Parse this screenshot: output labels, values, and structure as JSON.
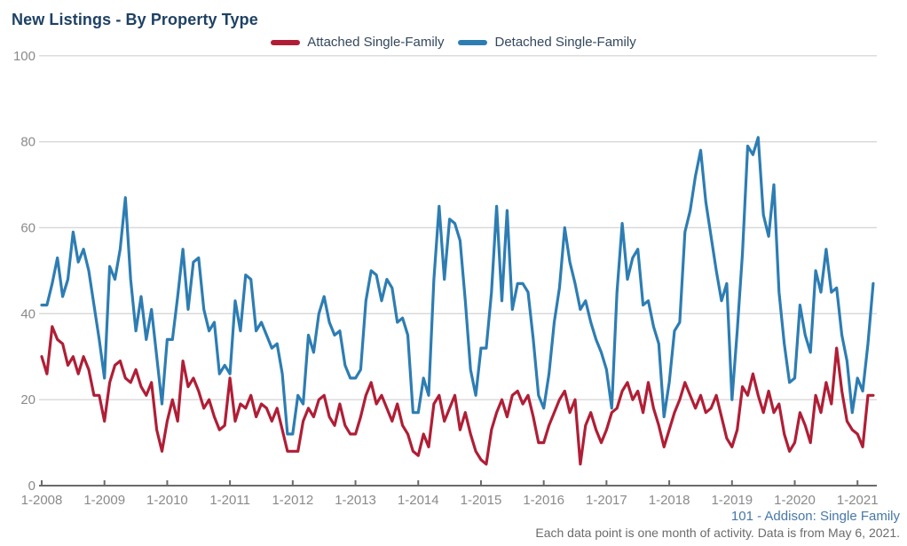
{
  "title": "New Listings - By Property Type",
  "legend": [
    {
      "label": "Attached Single-Family",
      "color": "#b01e36"
    },
    {
      "label": "Detached Single-Family",
      "color": "#2d7db3"
    }
  ],
  "footer": {
    "link": "101 - Addison: Single Family",
    "note": "Each data point is one month of activity. Data is from May 6, 2021."
  },
  "colors": {
    "title": "#1e4164",
    "legend_text": "#33485e",
    "axis_text": "#8a8a8a",
    "axis_line": "#6b6b6b",
    "gridline": "#d8d8d8",
    "attached": "#b01e36",
    "detached": "#2d7db3",
    "footer_link": "#4678a8",
    "footer_note": "#6b6b6b"
  },
  "chart_data": {
    "type": "line",
    "title": "New Listings - By Property Type",
    "xlabel": "",
    "ylabel": "",
    "ylim": [
      0,
      100
    ],
    "y_ticks": [
      0,
      20,
      40,
      60,
      80,
      100
    ],
    "x_tick_labels": [
      "1-2008",
      "1-2009",
      "1-2010",
      "1-2011",
      "1-2012",
      "1-2013",
      "1-2014",
      "1-2015",
      "1-2016",
      "1-2017",
      "1-2018",
      "1-2019",
      "1-2020",
      "1-2021"
    ],
    "months_per_tick": 12,
    "x_start": "2008-01",
    "x_end": "2021-04",
    "grid": "horizontal",
    "legend_position": "top-center",
    "series": [
      {
        "name": "Attached Single-Family",
        "color": "#b01e36",
        "values": [
          30,
          26,
          37,
          34,
          33,
          28,
          30,
          26,
          30,
          27,
          21,
          21,
          15,
          24,
          28,
          29,
          25,
          24,
          27,
          23,
          21,
          24,
          13,
          8,
          15,
          20,
          15,
          29,
          23,
          25,
          22,
          18,
          20,
          16,
          13,
          14,
          25,
          15,
          19,
          18,
          21,
          16,
          19,
          18,
          15,
          18,
          13,
          8,
          8,
          8,
          15,
          18,
          16,
          20,
          21,
          16,
          14,
          19,
          14,
          12,
          12,
          16,
          21,
          24,
          19,
          21,
          18,
          15,
          19,
          14,
          12,
          8,
          7,
          12,
          9,
          19,
          21,
          15,
          18,
          21,
          13,
          17,
          12,
          8,
          6,
          5,
          13,
          17,
          20,
          16,
          21,
          22,
          19,
          21,
          16,
          10,
          10,
          14,
          17,
          20,
          22,
          17,
          20,
          5,
          14,
          17,
          13,
          10,
          13,
          17,
          18,
          22,
          24,
          20,
          22,
          17,
          24,
          18,
          14,
          9,
          13,
          17,
          20,
          24,
          21,
          18,
          21,
          17,
          18,
          21,
          16,
          11,
          9,
          13,
          23,
          21,
          26,
          21,
          17,
          22,
          17,
          19,
          12,
          8,
          10,
          17,
          14,
          10,
          21,
          17,
          24,
          19,
          32,
          22,
          15,
          13,
          12,
          9,
          21,
          21
        ]
      },
      {
        "name": "Detached Single-Family",
        "color": "#2d7db3",
        "values": [
          42,
          42,
          47,
          53,
          44,
          48,
          59,
          52,
          55,
          50,
          42,
          34,
          25,
          51,
          48,
          55,
          67,
          48,
          36,
          44,
          34,
          41,
          30,
          19,
          34,
          34,
          44,
          55,
          41,
          52,
          53,
          41,
          36,
          38,
          26,
          28,
          26,
          43,
          36,
          49,
          48,
          36,
          38,
          35,
          32,
          33,
          26,
          12,
          12,
          21,
          19,
          35,
          31,
          40,
          44,
          38,
          35,
          36,
          28,
          25,
          25,
          27,
          43,
          50,
          49,
          43,
          48,
          46,
          38,
          39,
          35,
          17,
          17,
          25,
          21,
          48,
          65,
          48,
          62,
          61,
          57,
          43,
          27,
          21,
          32,
          32,
          45,
          65,
          43,
          64,
          41,
          47,
          47,
          45,
          34,
          21,
          18,
          26,
          38,
          46,
          60,
          52,
          47,
          41,
          43,
          38,
          34,
          31,
          27,
          18,
          45,
          61,
          48,
          53,
          55,
          42,
          43,
          37,
          33,
          16,
          24,
          36,
          38,
          59,
          64,
          72,
          78,
          66,
          58,
          50,
          43,
          47,
          20,
          36,
          54,
          79,
          77,
          81,
          63,
          58,
          70,
          45,
          33,
          24,
          25,
          42,
          35,
          31,
          50,
          45,
          55,
          45,
          46,
          35,
          29,
          17,
          25,
          22,
          33,
          47
        ]
      }
    ]
  }
}
